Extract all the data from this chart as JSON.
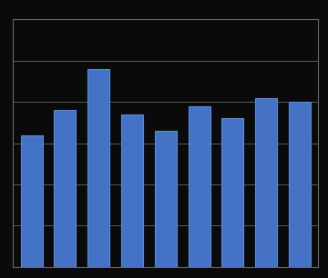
{
  "values": [
    3.2,
    3.8,
    4.8,
    3.7,
    3.3,
    3.9,
    3.6,
    4.1,
    4.0
  ],
  "bar_color": "#4472c4",
  "bar_edge_color": "#5a8ad4",
  "background_color": "#0a0a0a",
  "plot_bg_color": "#0a0a0a",
  "grid_color": "#666666",
  "ylim": [
    0,
    6
  ],
  "figsize": [
    3.6,
    3.06
  ],
  "dpi": 100
}
